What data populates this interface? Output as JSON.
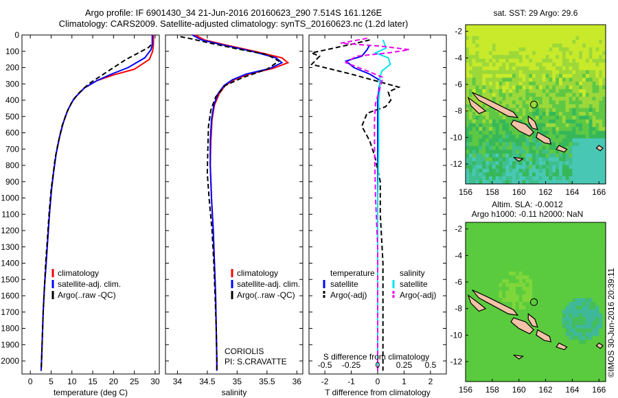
{
  "header": {
    "line1": "Argo profile: IF 6901430_34 21-Jun-2016 20160623_290 7.514S 161.126E",
    "line2": "Climatology: CARS2009. Satellite-adjusted climatology: synTS_20160623.nc (1.2d later)"
  },
  "colors": {
    "climatology": "#ff0000",
    "satellite": "#0000ff",
    "argo": "#000000",
    "sal_satellite": "#00e5ee",
    "sal_argo": "#ee00ee",
    "land": "#f4c2a8"
  },
  "chart_data": [
    {
      "type": "line",
      "id": "temperature",
      "xlabel": "temperature (deg C)",
      "ylabel": "",
      "xlim": [
        -2,
        31
      ],
      "ylim": [
        2080,
        0
      ],
      "xticks": [
        0,
        5,
        10,
        15,
        20,
        25,
        30
      ],
      "yticks": [
        0,
        100,
        200,
        300,
        400,
        500,
        600,
        700,
        800,
        900,
        1000,
        1100,
        1200,
        1300,
        1400,
        1500,
        1600,
        1700,
        1800,
        1900,
        2000
      ],
      "series": [
        {
          "name": "climatology",
          "color": "#ff0000",
          "style": "solid",
          "points": [
            [
              29.6,
              0
            ],
            [
              29.6,
              60
            ],
            [
              29.4,
              100
            ],
            [
              28.6,
              150
            ],
            [
              25,
              210
            ],
            [
              20,
              245
            ],
            [
              16,
              280
            ],
            [
              13,
              325
            ],
            [
              10.5,
              390
            ],
            [
              9,
              460
            ],
            [
              7.9,
              540
            ],
            [
              7,
              630
            ],
            [
              6.2,
              730
            ],
            [
              5.6,
              840
            ],
            [
              5.1,
              950
            ],
            [
              4.6,
              1100
            ],
            [
              4.2,
              1250
            ],
            [
              3.8,
              1400
            ],
            [
              3.4,
              1550
            ],
            [
              3.1,
              1700
            ],
            [
              2.9,
              1850
            ],
            [
              2.7,
              2000
            ],
            [
              2.6,
              2060
            ]
          ]
        },
        {
          "name": "satellite-adj. clim.",
          "color": "#0000ff",
          "style": "solid",
          "points": [
            [
              29.3,
              0
            ],
            [
              29.3,
              60
            ],
            [
              29,
              90
            ],
            [
              27.5,
              140
            ],
            [
              23.5,
              200
            ],
            [
              19.5,
              240
            ],
            [
              16,
              280
            ],
            [
              13,
              325
            ],
            [
              10.5,
              390
            ],
            [
              9,
              460
            ],
            [
              7.9,
              540
            ],
            [
              7,
              630
            ],
            [
              6.2,
              730
            ],
            [
              5.6,
              840
            ],
            [
              5.1,
              950
            ],
            [
              4.6,
              1100
            ],
            [
              4.2,
              1250
            ],
            [
              3.8,
              1400
            ],
            [
              3.4,
              1550
            ],
            [
              3.1,
              1700
            ],
            [
              2.9,
              1850
            ],
            [
              2.7,
              2000
            ],
            [
              2.6,
              2060
            ]
          ]
        },
        {
          "name": "Argo(..raw -QC)",
          "color": "#000000",
          "style": "dashed",
          "points": [
            [
              29,
              60
            ],
            [
              28.5,
              75
            ],
            [
              26,
              110
            ],
            [
              23,
              150
            ],
            [
              20,
              200
            ],
            [
              17,
              250
            ],
            [
              14,
              300
            ],
            [
              11.5,
              360
            ],
            [
              9.8,
              420
            ],
            [
              8.7,
              480
            ],
            [
              7.6,
              560
            ],
            [
              6.8,
              650
            ],
            [
              6,
              750
            ],
            [
              5.5,
              850
            ],
            [
              5,
              950
            ],
            [
              4.5,
              1100
            ],
            [
              4.1,
              1250
            ],
            [
              3.7,
              1400
            ],
            [
              3.4,
              1550
            ],
            [
              3.1,
              1700
            ],
            [
              2.9,
              1850
            ],
            [
              2.7,
              2000
            ],
            [
              2.6,
              2060
            ]
          ]
        }
      ],
      "legend": [
        {
          "label": "climatology",
          "color": "#ff0000"
        },
        {
          "label": "satellite-adj. clim.",
          "color": "#0000ff"
        },
        {
          "label": "Argo(..raw -QC)",
          "color": "#000000"
        }
      ]
    },
    {
      "type": "line",
      "id": "salinity",
      "xlabel": "salinity",
      "ylabel": "",
      "xlim": [
        33.8,
        36.1
      ],
      "ylim": [
        2080,
        0
      ],
      "xticks": [
        34,
        34.5,
        35,
        35.5,
        36
      ],
      "series": [
        {
          "name": "climatology",
          "color": "#ff0000",
          "style": "solid",
          "points": [
            [
              34.3,
              0
            ],
            [
              34.45,
              30
            ],
            [
              34.8,
              60
            ],
            [
              35.3,
              100
            ],
            [
              35.75,
              140
            ],
            [
              35.85,
              170
            ],
            [
              35.6,
              205
            ],
            [
              35.2,
              240
            ],
            [
              34.95,
              275
            ],
            [
              34.8,
              310
            ],
            [
              34.7,
              360
            ],
            [
              34.62,
              430
            ],
            [
              34.58,
              520
            ],
            [
              34.56,
              650
            ],
            [
              34.55,
              800
            ],
            [
              34.57,
              1000
            ],
            [
              34.6,
              1200
            ],
            [
              34.62,
              1400
            ],
            [
              34.64,
              1600
            ],
            [
              34.65,
              1800
            ],
            [
              34.66,
              2000
            ],
            [
              34.66,
              2060
            ]
          ]
        },
        {
          "name": "satellite-adj. clim.",
          "color": "#0000ff",
          "style": "solid",
          "points": [
            [
              34.25,
              0
            ],
            [
              34.4,
              30
            ],
            [
              34.75,
              60
            ],
            [
              35.25,
              100
            ],
            [
              35.65,
              140
            ],
            [
              35.75,
              170
            ],
            [
              35.55,
              205
            ],
            [
              35.15,
              240
            ],
            [
              34.92,
              275
            ],
            [
              34.78,
              310
            ],
            [
              34.68,
              360
            ],
            [
              34.61,
              430
            ],
            [
              34.57,
              520
            ],
            [
              34.55,
              650
            ],
            [
              34.55,
              800
            ],
            [
              34.57,
              1000
            ],
            [
              34.6,
              1200
            ],
            [
              34.62,
              1400
            ],
            [
              34.64,
              1600
            ],
            [
              34.65,
              1800
            ],
            [
              34.66,
              2000
            ],
            [
              34.66,
              2060
            ]
          ]
        },
        {
          "name": "Argo(..raw -QC)",
          "color": "#000000",
          "style": "dashed",
          "points": [
            [
              34.05,
              10
            ],
            [
              34.25,
              25
            ],
            [
              34.55,
              50
            ],
            [
              35,
              85
            ],
            [
              35.5,
              120
            ],
            [
              35.7,
              160
            ],
            [
              35.5,
              210
            ],
            [
              35.1,
              260
            ],
            [
              34.8,
              310
            ],
            [
              34.64,
              380
            ],
            [
              34.56,
              460
            ],
            [
              34.52,
              560
            ],
            [
              34.51,
              700
            ],
            [
              34.5,
              850
            ],
            [
              34.53,
              1000
            ],
            [
              34.58,
              1200
            ],
            [
              34.61,
              1400
            ],
            [
              34.63,
              1600
            ],
            [
              34.65,
              1800
            ],
            [
              34.66,
              2000
            ],
            [
              34.66,
              2060
            ]
          ]
        }
      ],
      "legend": [
        {
          "label": "climatology",
          "color": "#ff0000"
        },
        {
          "label": "satellite-adj. clim.",
          "color": "#0000ff"
        },
        {
          "label": "Argo(..raw -QC)",
          "color": "#000000"
        }
      ],
      "annotation": [
        "CORIOLIS",
        "PI: S.CRAVATTE"
      ]
    },
    {
      "type": "line",
      "id": "difference",
      "xlabel": "T difference from climatology",
      "xlabel_top": "S difference from climatology",
      "xlim": [
        -2.6,
        2.6
      ],
      "ylim": [
        2080,
        0
      ],
      "xticks": [
        -2,
        -1,
        0,
        1,
        2
      ],
      "s_ticks": [
        {
          "value": -0.5,
          "label": "-0.5"
        },
        {
          "value": -0.25,
          "label": "-0.25"
        },
        {
          "value": 0,
          "label": "0"
        },
        {
          "value": 0.25,
          "label": "0.25"
        },
        {
          "value": 0.5,
          "label": "0.5"
        }
      ],
      "s_scale": 4,
      "series": [
        {
          "name": "temperature satellite",
          "color": "#0000ff",
          "style": "solid",
          "points": [
            [
              -0.3,
              60
            ],
            [
              -0.4,
              90
            ],
            [
              -0.6,
              130
            ],
            [
              -1.2,
              160
            ],
            [
              -0.9,
              200
            ],
            [
              -0.3,
              240
            ],
            [
              0.1,
              280
            ],
            [
              0.05,
              330
            ],
            [
              0,
              400
            ],
            [
              0,
              600
            ],
            [
              0,
              1000
            ],
            [
              0,
              2060
            ]
          ]
        },
        {
          "name": "temperature Argo(-adj)",
          "color": "#000000",
          "style": "dashed",
          "points": [
            [
              -0.3,
              30
            ],
            [
              -0.8,
              50
            ],
            [
              -2.5,
              110
            ],
            [
              -2.2,
              130
            ],
            [
              -2.5,
              180
            ],
            [
              -1,
              240
            ],
            [
              0.8,
              320
            ],
            [
              0.4,
              350
            ],
            [
              0.5,
              400
            ],
            [
              0.3,
              440
            ],
            [
              -0.4,
              480
            ],
            [
              -0.6,
              560
            ],
            [
              -0.3,
              650
            ],
            [
              -0.1,
              750
            ],
            [
              0.1,
              900
            ],
            [
              0.1,
              1100
            ],
            [
              0.2,
              1400
            ],
            [
              0.2,
              1700
            ],
            [
              0.2,
              2000
            ],
            [
              0.2,
              2060
            ]
          ]
        },
        {
          "name": "salinity satellite",
          "color": "#00e5ee",
          "style": "solid",
          "points": [
            [
              0.05,
              30
            ],
            [
              0.08,
              80
            ],
            [
              -0.02,
              110
            ],
            [
              0.1,
              140
            ],
            [
              0.12,
              180
            ],
            [
              0.04,
              220
            ],
            [
              0.02,
              260
            ],
            [
              0.02,
              330
            ],
            [
              0.01,
              400
            ],
            [
              0.01,
              700
            ],
            [
              0,
              1000
            ],
            [
              0,
              2060
            ]
          ]
        },
        {
          "name": "salinity Argo(-adj)",
          "color": "#ee00ee",
          "style": "dashed",
          "points": [
            [
              -0.1,
              20
            ],
            [
              -0.35,
              50
            ],
            [
              0.05,
              70
            ],
            [
              0.3,
              90
            ],
            [
              0.1,
              110
            ],
            [
              -0.2,
              130
            ],
            [
              -0.3,
              170
            ],
            [
              -0.1,
              220
            ],
            [
              0.05,
              260
            ],
            [
              0.02,
              330
            ],
            [
              -0.02,
              420
            ],
            [
              -0.03,
              520
            ],
            [
              -0.03,
              700
            ],
            [
              -0.02,
              1000
            ],
            [
              0,
              1300
            ],
            [
              0,
              2060
            ]
          ]
        }
      ],
      "legend_left": {
        "title": "temperature",
        "items": [
          {
            "label": "satellite",
            "color": "#0000ff",
            "style": "solid"
          },
          {
            "label": "Argo(-adj)",
            "color": "#000000",
            "style": "dashed"
          }
        ]
      },
      "legend_right": {
        "title": "salinity",
        "items": [
          {
            "label": "satellite",
            "color": "#00e5ee",
            "style": "solid"
          },
          {
            "label": "Argo(-adj)",
            "color": "#ee00ee",
            "style": "dashed"
          }
        ]
      }
    },
    {
      "type": "heatmap",
      "id": "sst_map",
      "title": "sat. SST: 29 Argo: 29.6",
      "xlim": [
        156,
        166.5
      ],
      "ylim": [
        -13.5,
        -1.5
      ],
      "xticks": [
        156,
        158,
        160,
        162,
        164,
        166
      ],
      "yticks": [
        -2,
        -4,
        -6,
        -8,
        -10,
        -12
      ],
      "marker": {
        "lon": 161.126,
        "lat": -7.514
      }
    },
    {
      "type": "heatmap",
      "id": "sla_map",
      "title_line1": "Altim. SLA: -0.0012",
      "title_line2": "Argo h1000: -0.11 h2000: NaN",
      "xlim": [
        156,
        166.5
      ],
      "ylim": [
        -13.5,
        -1.5
      ],
      "xticks": [
        156,
        158,
        160,
        162,
        164,
        166
      ],
      "yticks": [
        -2,
        -4,
        -6,
        -8,
        -10,
        -12
      ],
      "marker": {
        "lon": 161.126,
        "lat": -7.514
      }
    }
  ],
  "side_stamp": "©IMOS 30-Jun-2016 20:39:11"
}
